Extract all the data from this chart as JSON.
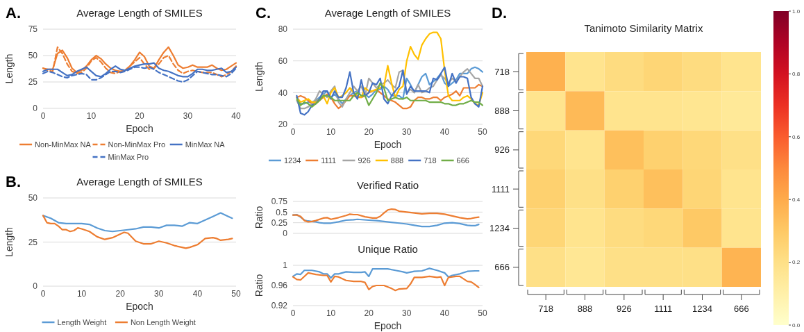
{
  "chart_data": [
    {
      "type": "line",
      "title": "Average Length of SMILES",
      "xlabel": "Epoch",
      "ylabel": "Length",
      "annotations": [
        "A."
      ],
      "x": [
        0,
        1,
        2,
        3,
        4,
        5,
        6,
        7,
        8,
        9,
        10,
        11,
        12,
        13,
        14,
        15,
        16,
        17,
        18,
        19,
        20,
        21,
        22,
        23,
        24,
        25,
        26,
        27,
        28,
        29,
        30,
        31,
        32,
        33,
        34,
        35,
        36,
        37,
        38,
        39,
        40
      ],
      "xlim": [
        0,
        40
      ],
      "xticks": [
        0,
        10,
        20,
        30,
        40
      ],
      "ylim": [
        0,
        75
      ],
      "yticks": [
        0,
        25,
        50,
        75
      ],
      "grid": "y",
      "legend": "bottom",
      "series": [
        {
          "name": "Non-MinMax NA",
          "color": "#ed7d31",
          "line_style": "solid",
          "values": [
            38,
            37,
            37,
            52,
            55,
            48,
            38,
            34,
            36,
            40,
            46,
            50,
            47,
            42,
            38,
            36,
            35,
            36,
            40,
            46,
            53,
            49,
            40,
            38,
            46,
            53,
            58,
            50,
            41,
            38,
            39,
            41,
            39,
            39,
            39,
            41,
            38,
            36,
            37,
            40,
            43
          ]
        },
        {
          "name": "Non-MinMax Pro",
          "color": "#ed7d31",
          "line_style": "dashed",
          "values": [
            38,
            36,
            35,
            58,
            52,
            42,
            35,
            33,
            34,
            38,
            45,
            48,
            44,
            38,
            34,
            33,
            35,
            36,
            40,
            44,
            48,
            42,
            37,
            38,
            42,
            48,
            50,
            42,
            36,
            33,
            35,
            36,
            35,
            34,
            34,
            34,
            32,
            30,
            32,
            35,
            40
          ]
        },
        {
          "name": "MinMax NA",
          "color": "#4472c4",
          "line_style": "solid",
          "values": [
            35,
            37,
            37,
            37,
            34,
            31,
            32,
            35,
            37,
            39,
            35,
            31,
            30,
            33,
            37,
            40,
            37,
            36,
            38,
            40,
            41,
            42,
            42,
            43,
            38,
            36,
            35,
            33,
            31,
            30,
            30,
            33,
            37,
            37,
            36,
            36,
            37,
            38,
            34,
            35,
            39
          ]
        },
        {
          "name": "MinMax Pro",
          "color": "#4472c4",
          "line_style": "dashed",
          "values": [
            33,
            35,
            34,
            32,
            30,
            29,
            31,
            32,
            33,
            32,
            27,
            27,
            29,
            32,
            35,
            35,
            34,
            35,
            37,
            39,
            39,
            38,
            39,
            37,
            34,
            32,
            30,
            28,
            26,
            25,
            27,
            31,
            35,
            34,
            33,
            32,
            32,
            31,
            30,
            33,
            38
          ]
        }
      ]
    },
    {
      "type": "line",
      "title": "Average Length of SMILES",
      "xlabel": "Epoch",
      "ylabel": "Length",
      "annotations": [
        "B."
      ],
      "xlim": [
        0,
        50
      ],
      "xticks": [
        0,
        10,
        20,
        30,
        40,
        50
      ],
      "ylim": [
        0,
        50
      ],
      "yticks": [
        0,
        25,
        50
      ],
      "grid": "y",
      "legend": "bottom",
      "series": [
        {
          "name": "Length Weight",
          "color": "#5b9bd5",
          "x": [
            0,
            2,
            4,
            6,
            8,
            10,
            12,
            14,
            16,
            18,
            20,
            22,
            24,
            26,
            28,
            30,
            32,
            34,
            36,
            38,
            40,
            42,
            44,
            46,
            48,
            49
          ],
          "values": [
            40,
            38.5,
            36,
            35.5,
            35.5,
            35.5,
            35,
            33,
            31.5,
            31,
            31.5,
            32,
            32.5,
            33.5,
            33.5,
            33,
            34.5,
            34.5,
            34,
            36,
            35.5,
            37.5,
            39.5,
            41.5,
            39.5,
            38.5
          ]
        },
        {
          "name": "Non Length Weight",
          "color": "#ed7d31",
          "x": [
            0,
            1,
            2,
            3,
            4,
            5,
            6,
            7,
            8,
            9,
            10,
            12,
            14,
            16,
            18,
            20,
            21,
            22,
            24,
            26,
            28,
            30,
            32,
            34,
            36,
            37,
            38,
            40,
            42,
            44,
            45,
            46,
            48,
            49
          ],
          "values": [
            40,
            36,
            35.5,
            35.5,
            34,
            32,
            32,
            31,
            31.5,
            33,
            32.5,
            31,
            28,
            26.5,
            27.5,
            29.5,
            30.5,
            30,
            25.5,
            24,
            24,
            25.5,
            24.5,
            23,
            22,
            21.5,
            22,
            23.5,
            27,
            27.5,
            27,
            26,
            26.5,
            27
          ]
        }
      ]
    },
    {
      "type": "line",
      "title": "Average Length of SMILES",
      "xlabel": "Epoch",
      "ylabel": "Length",
      "annotations": [
        "C."
      ],
      "x": [
        1,
        2,
        3,
        4,
        5,
        6,
        7,
        8,
        9,
        10,
        11,
        12,
        13,
        14,
        15,
        16,
        17,
        18,
        19,
        20,
        21,
        22,
        23,
        24,
        25,
        26,
        27,
        28,
        29,
        30,
        31,
        32,
        33,
        34,
        35,
        36,
        37,
        38,
        39,
        40,
        41,
        42,
        43,
        44,
        45,
        46,
        47,
        48,
        49,
        50
      ],
      "xlim": [
        0,
        50
      ],
      "xticks": [
        0,
        10,
        20,
        30,
        40,
        50
      ],
      "ylim": [
        20,
        80
      ],
      "yticks": [
        20,
        40,
        60,
        80
      ],
      "grid": "y",
      "legend": "bottom",
      "series": [
        {
          "name": "1234",
          "color": "#5b9bd5",
          "values": [
            37,
            33,
            33,
            34,
            34,
            35,
            37,
            39,
            41,
            37,
            39,
            36,
            33,
            36,
            38,
            40,
            41,
            38,
            39,
            37,
            39,
            42,
            42,
            44,
            42,
            38,
            38,
            38,
            36,
            49,
            45,
            40,
            45,
            50,
            52,
            45,
            47,
            49,
            52,
            46,
            44,
            46,
            48,
            52,
            52,
            52,
            55,
            56,
            55,
            53
          ]
        },
        {
          "name": "1111",
          "color": "#ed7d31",
          "values": [
            37,
            38,
            37,
            35,
            33,
            33,
            35,
            37,
            39,
            37,
            33,
            30,
            32,
            35,
            38,
            38,
            37,
            37,
            38,
            40,
            41,
            42,
            40,
            38,
            36,
            35,
            34,
            32,
            30,
            30,
            31,
            35,
            37,
            37,
            36,
            36,
            37,
            37,
            35,
            37,
            38,
            39,
            41,
            38,
            43,
            43,
            43,
            43,
            45,
            44
          ]
        },
        {
          "name": "926",
          "color": "#a5a5a5",
          "values": [
            35,
            30,
            30,
            31,
            33,
            36,
            41,
            39,
            37,
            41,
            44,
            34,
            31,
            36,
            40,
            44,
            41,
            44,
            38,
            49,
            46,
            43,
            45,
            46,
            48,
            45,
            43,
            53,
            54,
            40,
            42,
            40,
            45,
            40,
            41,
            43,
            44,
            48,
            51,
            49,
            46,
            49,
            47,
            50,
            53,
            55,
            52,
            49,
            49,
            44
          ]
        },
        {
          "name": "888",
          "color": "#ffc000",
          "values": [
            37,
            34,
            35,
            36,
            34,
            34,
            36,
            38,
            33,
            40,
            43,
            37,
            38,
            40,
            43,
            40,
            38,
            37,
            43,
            41,
            41,
            42,
            43,
            44,
            57,
            46,
            37,
            42,
            44,
            60,
            69,
            64,
            61,
            70,
            74,
            77,
            78,
            78,
            74,
            54,
            38,
            35,
            35,
            35,
            37,
            38,
            36,
            33,
            32,
            40
          ]
        },
        {
          "name": "718",
          "color": "#4472c4",
          "values": [
            38,
            27,
            26,
            28,
            32,
            33,
            36,
            41,
            41,
            36,
            41,
            37,
            37,
            43,
            53,
            40,
            36,
            48,
            38,
            40,
            46,
            45,
            49,
            36,
            33,
            38,
            41,
            44,
            54,
            39,
            44,
            41,
            41,
            41,
            41,
            40,
            49,
            48,
            52,
            56,
            44,
            52,
            46,
            50,
            50,
            49,
            37,
            33,
            31,
            44
          ]
        },
        {
          "name": "666",
          "color": "#70ad47",
          "values": [
            36,
            32,
            34,
            33,
            31,
            33,
            35,
            38,
            38,
            37,
            35,
            35,
            35,
            35,
            35,
            38,
            40,
            38,
            38,
            32,
            36,
            40,
            46,
            43,
            35,
            36,
            37,
            36,
            36,
            37,
            35,
            35,
            35,
            35,
            35,
            34,
            34,
            34,
            34,
            33,
            33,
            32,
            32,
            33,
            33,
            34,
            35,
            34,
            34,
            32
          ]
        }
      ]
    },
    {
      "type": "line",
      "title": "Verified Ratio",
      "ylabel": "Ratio",
      "xlim": [
        0,
        50
      ],
      "ylim": [
        0,
        0.75
      ],
      "yticks": [
        0,
        0.25,
        0.5,
        0.75
      ],
      "grid": "y",
      "tick_labels": "y",
      "series": [
        {
          "color": "#5b9bd5",
          "x": [
            0,
            1,
            2,
            3,
            4,
            5,
            6,
            7,
            8,
            10,
            12,
            14,
            16,
            17,
            20,
            22,
            24,
            26,
            28,
            30,
            32,
            34,
            36,
            38,
            40,
            42,
            44,
            46,
            47,
            48,
            49
          ],
          "values": [
            0.43,
            0.44,
            0.38,
            0.31,
            0.29,
            0.28,
            0.27,
            0.25,
            0.24,
            0.24,
            0.27,
            0.31,
            0.32,
            0.33,
            0.31,
            0.3,
            0.28,
            0.26,
            0.24,
            0.22,
            0.19,
            0.16,
            0.16,
            0.19,
            0.24,
            0.25,
            0.23,
            0.19,
            0.18,
            0.18,
            0.21
          ]
        },
        {
          "color": "#ed7d31",
          "x": [
            0,
            1,
            2,
            3,
            4,
            5,
            6,
            8,
            9,
            10,
            12,
            14,
            15,
            16,
            17,
            19,
            21,
            22,
            23,
            24,
            25,
            26,
            27,
            28,
            30,
            32,
            34,
            36,
            38,
            40,
            42,
            44,
            46,
            47,
            48,
            49
          ],
          "values": [
            0.43,
            0.43,
            0.4,
            0.3,
            0.27,
            0.28,
            0.3,
            0.36,
            0.37,
            0.33,
            0.37,
            0.42,
            0.45,
            0.44,
            0.44,
            0.39,
            0.36,
            0.36,
            0.4,
            0.48,
            0.55,
            0.57,
            0.56,
            0.52,
            0.5,
            0.48,
            0.46,
            0.47,
            0.47,
            0.45,
            0.41,
            0.37,
            0.34,
            0.35,
            0.37,
            0.38
          ]
        }
      ]
    },
    {
      "type": "line",
      "title": "Unique Ratio",
      "xlabel": "Epoch",
      "ylabel": "Ratio",
      "xlim": [
        0,
        50
      ],
      "xticks": [
        0,
        10,
        20,
        30,
        40,
        50
      ],
      "ylim": [
        0.92,
        1
      ],
      "yticks": [
        0.92,
        0.96,
        1
      ],
      "grid": "y",
      "series": [
        {
          "color": "#5b9bd5",
          "x": [
            0,
            1,
            2,
            3,
            4,
            5,
            7,
            8,
            9,
            10,
            11,
            12,
            14,
            16,
            18,
            19,
            20,
            21,
            23,
            25,
            27,
            29,
            30,
            32,
            34,
            36,
            38,
            40,
            41,
            42,
            44,
            46,
            48,
            49
          ],
          "values": [
            0.978,
            0.983,
            0.982,
            0.99,
            0.99,
            0.99,
            0.987,
            0.983,
            0.983,
            0.975,
            0.983,
            0.983,
            0.987,
            0.986,
            0.986,
            0.987,
            0.978,
            0.993,
            0.993,
            0.993,
            0.99,
            0.987,
            0.985,
            0.988,
            0.989,
            0.994,
            0.99,
            0.985,
            0.977,
            0.98,
            0.983,
            0.988,
            0.989,
            0.989
          ]
        },
        {
          "color": "#ed7d31",
          "x": [
            0,
            1,
            2,
            3,
            4,
            6,
            8,
            9,
            10,
            11,
            12,
            14,
            16,
            18,
            19,
            20,
            21,
            22,
            24,
            26,
            27,
            28,
            30,
            31,
            32,
            34,
            36,
            38,
            39,
            40,
            41,
            43,
            44,
            46,
            47,
            48,
            49
          ],
          "values": [
            0.977,
            0.972,
            0.971,
            0.978,
            0.985,
            0.982,
            0.98,
            0.98,
            0.967,
            0.978,
            0.977,
            0.97,
            0.968,
            0.968,
            0.966,
            0.952,
            0.958,
            0.96,
            0.96,
            0.954,
            0.95,
            0.953,
            0.954,
            0.963,
            0.976,
            0.976,
            0.978,
            0.976,
            0.977,
            0.96,
            0.976,
            0.978,
            0.978,
            0.968,
            0.967,
            0.962,
            0.956
          ]
        }
      ]
    },
    {
      "type": "heatmap",
      "title": "Tanimoto Similarity Matrix",
      "annotations": [
        "D."
      ],
      "categories": [
        "718",
        "888",
        "926",
        "1111",
        "1234",
        "666"
      ],
      "y_categories": [
        "718",
        "888",
        "926",
        "1111",
        "1234",
        "666"
      ],
      "clim": [
        0,
        1
      ],
      "cticks": [
        {
          "value": 0,
          "label": "0.0"
        },
        0.2,
        0.4,
        0.6,
        0.8,
        {
          "value": 1,
          "label": "1.0"
        }
      ],
      "cells": [
        [
          0.38,
          0.18,
          0.22,
          0.25,
          0.22,
          0.18
        ],
        [
          0.18,
          0.35,
          0.18,
          0.18,
          0.17,
          0.15
        ],
        [
          0.24,
          0.18,
          0.33,
          0.27,
          0.24,
          0.2
        ],
        [
          0.27,
          0.2,
          0.27,
          0.33,
          0.25,
          0.18
        ],
        [
          0.25,
          0.18,
          0.22,
          0.24,
          0.3,
          0.18
        ],
        [
          0.2,
          0.16,
          0.2,
          0.2,
          0.2,
          0.37
        ]
      ]
    }
  ]
}
